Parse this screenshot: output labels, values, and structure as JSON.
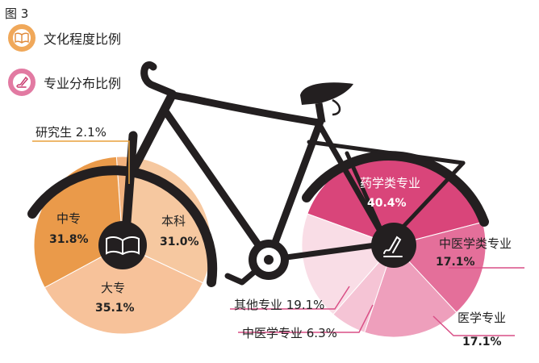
{
  "figure_label": "图 3",
  "legend": [
    {
      "label": "文化程度比例",
      "icon": "book-icon"
    },
    {
      "label": "专业分布比例",
      "icon": "pen-icon"
    }
  ],
  "colors": {
    "edu": [
      "#f2b27e",
      "#f6c8a0",
      "#f7c29a",
      "#ea9a4a"
    ],
    "major": [
      "#d9457a",
      "#e46f9a",
      "#ee9fbc",
      "#f5c4d5",
      "#f9dde6"
    ],
    "frame": "#231f20"
  },
  "chart_data": [
    {
      "type": "pie",
      "title": "文化程度比例",
      "slices": [
        {
          "label": "研究生",
          "value": 2.1,
          "display": "研究生 2.1%"
        },
        {
          "label": "本科",
          "value": 31.0,
          "display": "31.0%"
        },
        {
          "label": "大专",
          "value": 35.1,
          "display": "35.1%"
        },
        {
          "label": "中专",
          "value": 31.8,
          "display": "31.8%"
        }
      ]
    },
    {
      "type": "pie",
      "title": "专业分布比例",
      "slices": [
        {
          "label": "药学类专业",
          "value": 40.4,
          "display": "40.4%"
        },
        {
          "label": "中医学类专业",
          "value": 17.1,
          "display": "17.1%"
        },
        {
          "label": "医学专业",
          "value": 17.1,
          "display": "17.1%"
        },
        {
          "label": "中医学专业",
          "value": 6.3,
          "display": "中医学专业 6.3%"
        },
        {
          "label": "其他专业",
          "value": 19.1,
          "display": "其他专业 19.1%"
        }
      ]
    }
  ]
}
